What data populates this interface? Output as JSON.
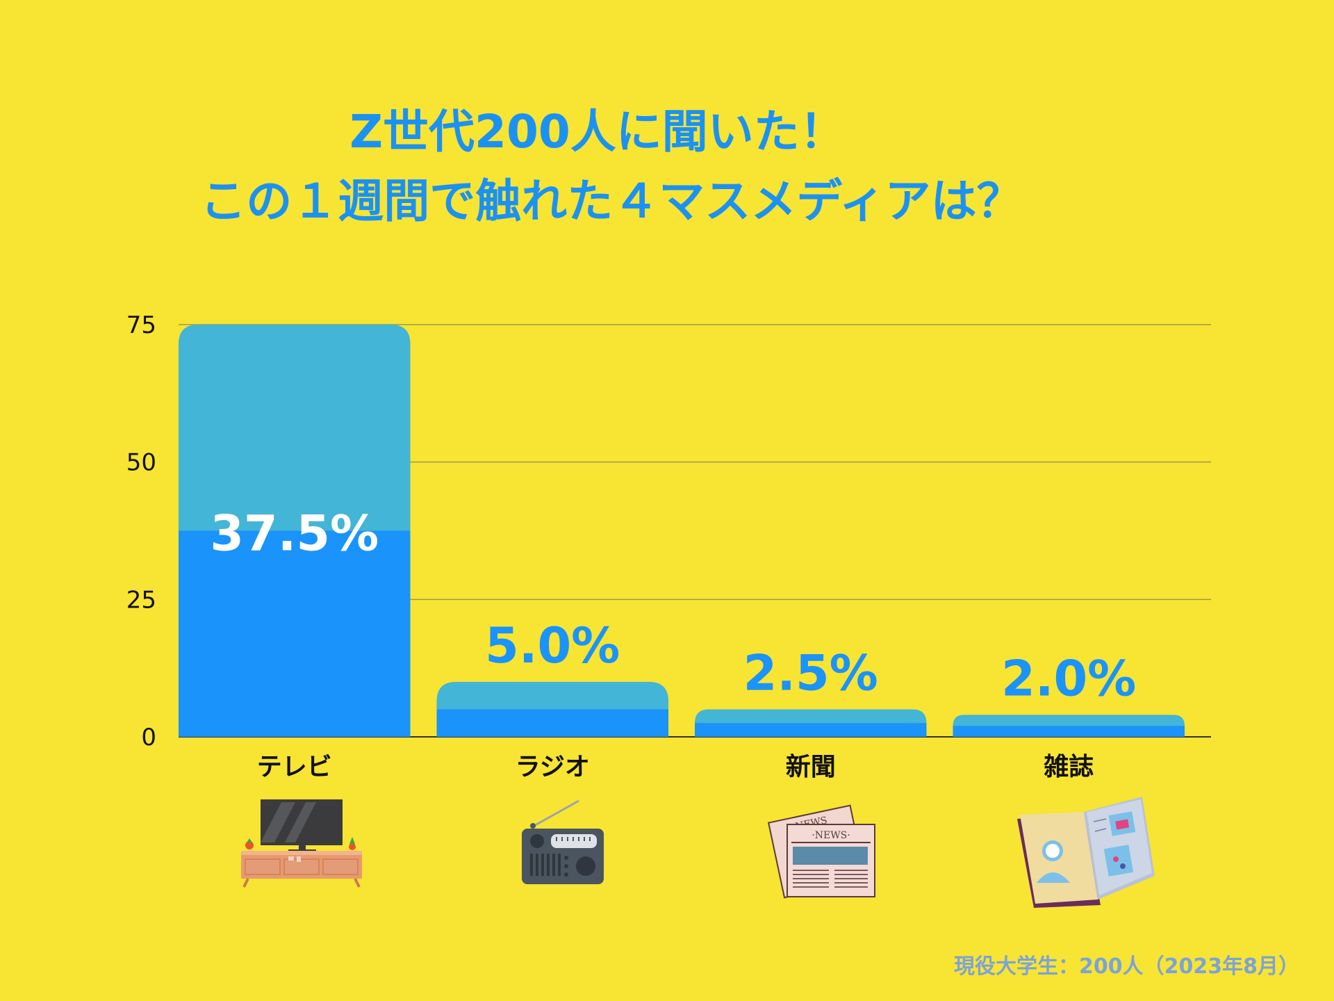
{
  "title": {
    "line1": "Z世代200人に聞いた！",
    "line2": "この１週間で触れた４マスメディアは？"
  },
  "footnote": "現役大学生：200人（2023年8月）",
  "colors": {
    "background": "#F8E432",
    "bar_full": "#43B5D6",
    "bar_value": "#1A93FA",
    "title": "#1B92F2",
    "footnote": "#7BA3DA"
  },
  "chart_data": {
    "type": "bar",
    "categories": [
      "テレビ",
      "ラジオ",
      "新聞",
      "雑誌"
    ],
    "values": [
      37.5,
      5.0,
      2.5,
      2.0
    ],
    "value_labels": [
      "37.5%",
      "5.0%",
      "2.5%",
      "2.0%"
    ],
    "bar_totals": [
      75,
      10,
      5,
      4
    ],
    "y_ticks": [
      0,
      25,
      50,
      75
    ],
    "ylim": [
      0,
      75
    ],
    "grid": true,
    "legend": "none",
    "icons": [
      "tv-icon",
      "radio-icon",
      "newspaper-icon",
      "magazine-icon"
    ]
  }
}
